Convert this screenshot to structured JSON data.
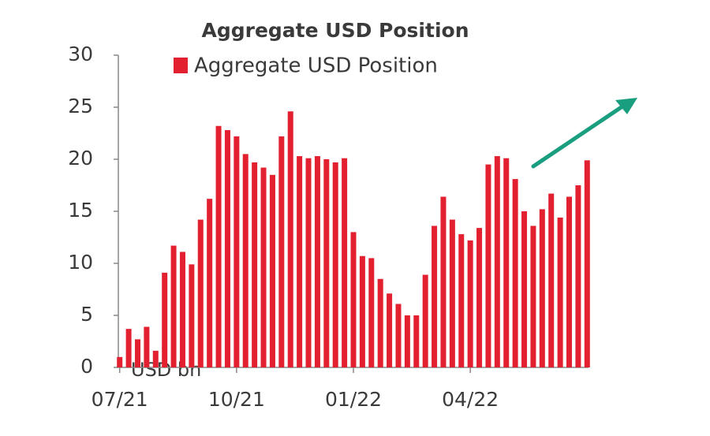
{
  "chart_data": {
    "type": "bar",
    "title": "Aggregate USD Position",
    "annotation": "USD bn",
    "series": [
      {
        "name": "Aggregate USD Position",
        "color": "#e3202f",
        "values": [
          1.0,
          3.7,
          2.7,
          3.9,
          1.6,
          9.1,
          11.7,
          11.1,
          9.9,
          14.2,
          16.2,
          23.2,
          22.8,
          22.2,
          20.5,
          19.7,
          19.2,
          18.5,
          22.2,
          24.6,
          20.3,
          20.1,
          20.3,
          20.0,
          19.7,
          20.1,
          13.0,
          10.7,
          10.5,
          8.5,
          7.1,
          6.1,
          5.0,
          5.0,
          8.9,
          13.6,
          16.4,
          14.2,
          12.8,
          12.2,
          13.4,
          19.5,
          20.3,
          20.1,
          18.1,
          15.0,
          13.6,
          15.2,
          16.7,
          14.4,
          16.4,
          17.5,
          19.9
        ]
      }
    ],
    "categories": [
      "07/21",
      null,
      null,
      null,
      null,
      null,
      null,
      null,
      null,
      null,
      null,
      null,
      null,
      "10/21",
      null,
      null,
      null,
      null,
      null,
      null,
      null,
      null,
      null,
      null,
      null,
      null,
      "01/22",
      null,
      null,
      null,
      null,
      null,
      null,
      null,
      null,
      null,
      null,
      null,
      null,
      "04/22",
      null,
      null,
      null,
      null,
      null,
      null,
      null,
      null,
      null,
      null,
      null,
      null,
      null
    ],
    "ylim": [
      0,
      30
    ],
    "yticks": [
      0,
      5,
      10,
      15,
      20,
      25,
      30
    ],
    "grid": false
  }
}
